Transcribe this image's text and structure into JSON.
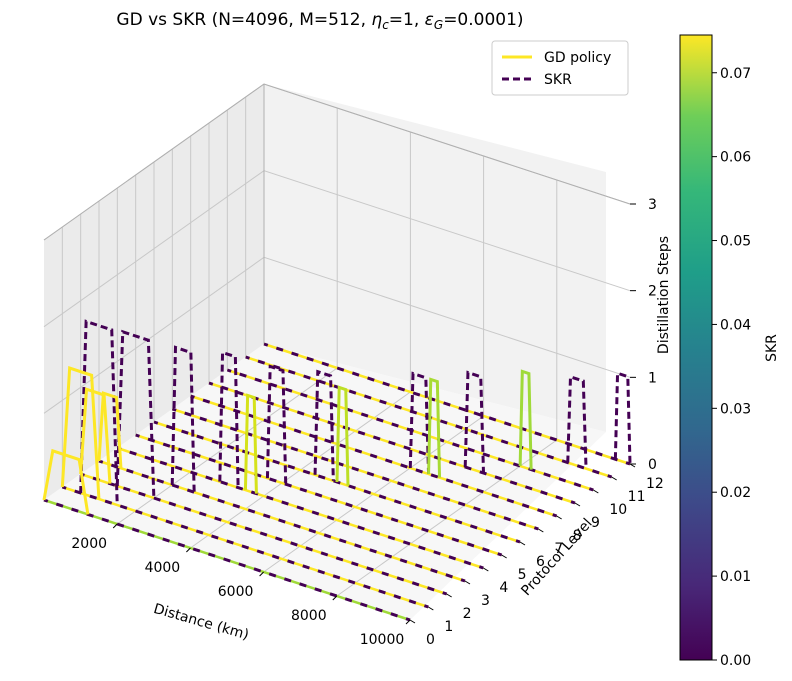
{
  "chart_data": {
    "type": "line",
    "title_main": "GD vs SKR (N=4096, M=512, ",
    "title_eta": "η",
    "title_eta_sub": "c",
    "title_mid": "=1, ",
    "title_eps": "ε",
    "title_eps_sub": "G",
    "title_end": "=0.0001)",
    "xlabel": "Distance (km)",
    "ylabel": "Protocol Level",
    "zlabel": "Distillation Steps",
    "colorbar_label": "SKR",
    "xlim": [
      0,
      10000
    ],
    "ylim": [
      0,
      12
    ],
    "zlim": [
      0,
      3
    ],
    "xticks": [
      "2000",
      "4000",
      "6000",
      "8000",
      "10000"
    ],
    "yticks": [
      "0",
      "1",
      "2",
      "3",
      "4",
      "5",
      "6",
      "7",
      "8",
      "9",
      "10",
      "11",
      "12"
    ],
    "zticks": [
      "0",
      "1",
      "2",
      "3"
    ],
    "colorbar_ticks": [
      "0.00",
      "0.01",
      "0.02",
      "0.03",
      "0.04",
      "0.05",
      "0.06",
      "0.07"
    ],
    "colorbar_range": [
      0,
      0.0745
    ],
    "legend": [
      {
        "label": "GD policy",
        "style": "solid",
        "color": "#fde725"
      },
      {
        "label": "SKR",
        "style": "dashed",
        "color": "#440154"
      }
    ],
    "series": [
      {
        "name": "GD policy",
        "level": 0,
        "distance_start": 0,
        "distance_end": 10000,
        "step": 0,
        "color": "#a0da39"
      },
      {
        "name": "GD policy",
        "level": 1,
        "distance_start": 0,
        "distance_end": 10000,
        "step": 0,
        "color": "#fde725"
      },
      {
        "name": "GD policy",
        "level": 2,
        "distance_start": 0,
        "distance_end": 10000,
        "step": 0,
        "color": "#fde725"
      },
      {
        "name": "GD policy",
        "level": 3,
        "distance_start": 0,
        "distance_end": 10000,
        "step": 0,
        "color": "#fde725"
      },
      {
        "name": "GD policy",
        "level": 4,
        "distance_start": 0,
        "distance_end": 10000,
        "step": 0,
        "color": "#fde725"
      },
      {
        "name": "GD policy",
        "level": 5,
        "distance_start": 0,
        "distance_end": 10000,
        "step": 0,
        "color": "#fde725"
      },
      {
        "name": "GD policy",
        "level": 6,
        "distance_start": 0,
        "distance_end": 10000,
        "step": 0,
        "color": "#fde725"
      },
      {
        "name": "GD policy",
        "level": 7,
        "distance_start": 0,
        "distance_end": 10000,
        "step": 0,
        "color": "#fde725"
      },
      {
        "name": "GD policy",
        "level": 8,
        "distance_start": 0,
        "distance_end": 10000,
        "step": 0,
        "color": "#fde725"
      },
      {
        "name": "GD policy",
        "level": 9,
        "distance_start": 0,
        "distance_end": 10000,
        "step": 0,
        "color": "#fde725"
      },
      {
        "name": "GD policy",
        "level": 10,
        "distance_start": 0,
        "distance_end": 10000,
        "step": 0,
        "color": "#fde725"
      },
      {
        "name": "GD policy",
        "level": 11,
        "distance_start": 0,
        "distance_end": 10000,
        "step": 0,
        "color": "#fde725"
      },
      {
        "name": "GD policy",
        "level": 12,
        "distance_start": 0,
        "distance_end": 10000,
        "step": 0,
        "color": "#fde725"
      }
    ],
    "gd_peaks": [
      {
        "level": 0,
        "d_start": 0,
        "d_end": 1200,
        "step": 0.6,
        "color": "#fde725"
      },
      {
        "level": 1,
        "d_start": 0,
        "d_end": 1000,
        "step": 1.4,
        "color": "#fde725"
      },
      {
        "level": 2,
        "d_start": 0,
        "d_end": 800,
        "step": 1.0,
        "color": "#fde725"
      },
      {
        "level": 3,
        "d_start": 0,
        "d_end": 600,
        "step": 0.8,
        "color": "#fde725"
      },
      {
        "level": 4,
        "d_start": 3500,
        "d_end": 3800,
        "step": 1.1,
        "color": "#d5e21a"
      },
      {
        "level": 6,
        "d_start": 5000,
        "d_end": 5300,
        "step": 1.1,
        "color": "#bddf26"
      },
      {
        "level": 8,
        "d_start": 6500,
        "d_end": 6800,
        "step": 1.1,
        "color": "#a8db34"
      },
      {
        "level": 10,
        "d_start": 8000,
        "d_end": 8300,
        "step": 1.1,
        "color": "#a0da39"
      }
    ],
    "skr_peaks": [
      {
        "level": 1,
        "d_start": 500,
        "d_end": 1500,
        "step": 2.0
      },
      {
        "level": 2,
        "d_start": 1000,
        "d_end": 2000,
        "step": 1.8
      },
      {
        "level": 3,
        "d_start": 2000,
        "d_end": 2600,
        "step": 1.6
      },
      {
        "level": 4,
        "d_start": 2800,
        "d_end": 3300,
        "step": 1.5
      },
      {
        "level": 5,
        "d_start": 3600,
        "d_end": 4100,
        "step": 1.3
      },
      {
        "level": 6,
        "d_start": 4400,
        "d_end": 4900,
        "step": 1.2
      },
      {
        "level": 8,
        "d_start": 6000,
        "d_end": 6500,
        "step": 1.1
      },
      {
        "level": 9,
        "d_start": 7000,
        "d_end": 7500,
        "step": 1.1
      },
      {
        "level": 11,
        "d_start": 8800,
        "d_end": 9300,
        "step": 1.0
      },
      {
        "level": 12,
        "d_start": 9600,
        "d_end": 10000,
        "step": 1.0
      }
    ]
  }
}
